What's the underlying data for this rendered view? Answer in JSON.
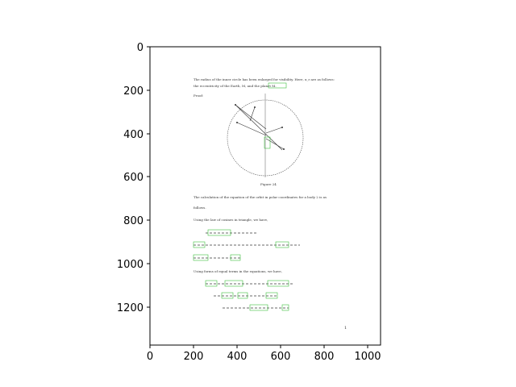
{
  "figure": {
    "x_ticks": [
      "0",
      "200",
      "400",
      "600",
      "800",
      "1000"
    ],
    "y_ticks": [
      "0",
      "200",
      "400",
      "600",
      "800",
      "1000",
      "1200"
    ]
  },
  "document": {
    "figure_caption": "Figure 24",
    "page_number": "1",
    "text_lines": [
      "The radius of the inner circle has been enlarged for visibility. Here, x_r are as follows:",
      "the eccentricity of the Earth, M, and the planet M.",
      "Proof:",
      "The calculation of the equation of the orbit in polar coordinates for a body 2 is as",
      "follows.",
      "Using the law of cosines in triangle, we have,",
      "Using forms of equal terms in the equations, we have,"
    ]
  },
  "colors": {
    "axis": "#000000",
    "page_border": "#000000",
    "annotation_box": "#3fbf3f",
    "text": "#444444"
  }
}
